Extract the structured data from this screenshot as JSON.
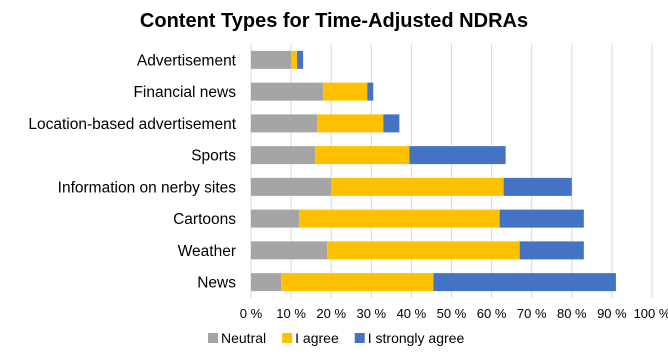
{
  "chart_data": {
    "type": "bar",
    "orientation": "horizontal",
    "stacked": true,
    "title": "Content Types for Time-Adjusted NDRAs",
    "xlabel": "",
    "ylabel": "",
    "xlim": [
      0,
      100
    ],
    "x_ticks": [
      "0 %",
      "10 %",
      "20 %",
      "30 %",
      "40 %",
      "50 %",
      "60 %",
      "70 %",
      "80 %",
      "90 %",
      "100 %"
    ],
    "grid": true,
    "legend_position": "bottom",
    "categories": [
      "Advertisement",
      "Financial news",
      "Location-based advertisement",
      "Sports",
      "Information on nerby sites",
      "Cartoons",
      "Weather",
      "News"
    ],
    "series": [
      {
        "name": "Neutral",
        "color": "#a5a5a5",
        "values": [
          10,
          18,
          16.5,
          16,
          20,
          12,
          19,
          7.5
        ]
      },
      {
        "name": "I agree",
        "color": "#ffc000",
        "values": [
          1.5,
          11,
          16.5,
          23.5,
          43,
          50,
          48,
          38
        ]
      },
      {
        "name": "I strongly agree",
        "color": "#4472c4",
        "values": [
          1.5,
          1.5,
          4,
          24,
          17,
          21,
          16,
          45.5
        ]
      }
    ]
  }
}
